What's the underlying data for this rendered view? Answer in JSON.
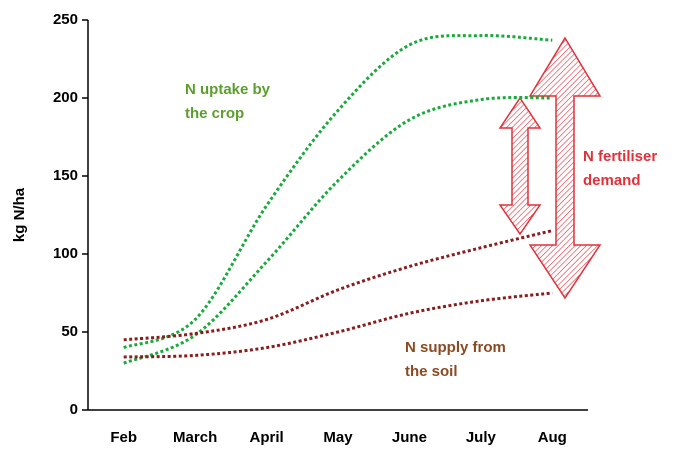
{
  "chart_data": {
    "type": "line",
    "y_label": "kg N/ha",
    "categories": [
      "Feb",
      "March",
      "April",
      "May",
      "June",
      "July",
      "Aug"
    ],
    "series": [
      {
        "color": "#1aaa3c",
        "values": [
          40,
          58,
          131,
          192,
          234,
          240,
          237
        ]
      },
      {
        "color": "#1aaa3c",
        "values": [
          30,
          48,
          95,
          147,
          186,
          199,
          200
        ]
      },
      {
        "color": "#8b1c1c",
        "values": [
          45,
          49,
          58,
          77,
          92,
          104,
          115
        ]
      },
      {
        "color": "#8b1c1c",
        "values": [
          34,
          35,
          40,
          50,
          62,
          70,
          75
        ]
      }
    ],
    "ylim": [
      0,
      250
    ],
    "yticks": [
      0,
      50,
      100,
      150,
      200,
      250
    ],
    "annotations": [
      {
        "lines": [
          "N uptake by",
          "the crop"
        ],
        "color": "#5c9e2e"
      },
      {
        "lines": [
          "N fertiliser",
          "demand"
        ],
        "color": "#e0303a"
      },
      {
        "lines": [
          "N supply from",
          "the soil"
        ],
        "color": "#8b4a22"
      }
    ]
  }
}
